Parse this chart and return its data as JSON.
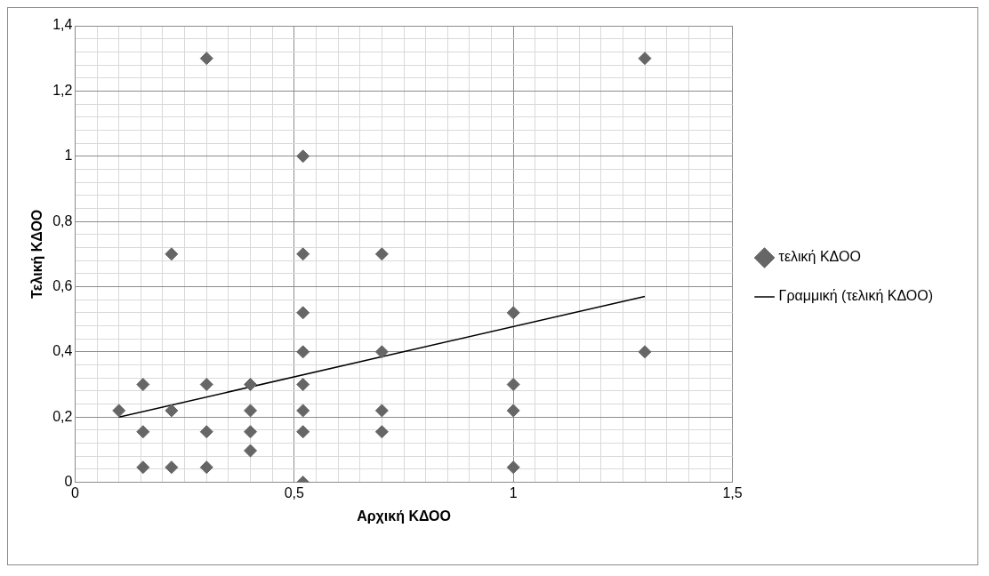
{
  "chart_data": {
    "type": "scatter",
    "xlabel": "Αρχική ΚΔΟΟ",
    "ylabel": "Τελική ΚΔΟΟ",
    "legend": "right",
    "grid": true,
    "marker": "diamond",
    "xlim": [
      0,
      1.5
    ],
    "ylim": [
      0,
      1.4
    ],
    "xticks": [
      {
        "value": 0,
        "label": "0"
      },
      {
        "value": 0.05,
        "label": null
      },
      {
        "value": 0.1,
        "label": null
      },
      {
        "value": 0.15,
        "label": null
      },
      {
        "value": 0.2,
        "label": null
      },
      {
        "value": 0.25,
        "label": null
      },
      {
        "value": 0.3,
        "label": null
      },
      {
        "value": 0.35,
        "label": null
      },
      {
        "value": 0.4,
        "label": null
      },
      {
        "value": 0.45,
        "label": null
      },
      {
        "value": 0.5,
        "label": "0,5"
      },
      {
        "value": 0.55,
        "label": null
      },
      {
        "value": 0.6,
        "label": null
      },
      {
        "value": 0.65,
        "label": null
      },
      {
        "value": 0.7,
        "label": null
      },
      {
        "value": 0.75,
        "label": null
      },
      {
        "value": 0.8,
        "label": null
      },
      {
        "value": 0.85,
        "label": null
      },
      {
        "value": 0.9,
        "label": null
      },
      {
        "value": 0.95,
        "label": null
      },
      {
        "value": 1,
        "label": "1"
      },
      {
        "value": 1.05,
        "label": null
      },
      {
        "value": 1.1,
        "label": null
      },
      {
        "value": 1.15,
        "label": null
      },
      {
        "value": 1.2,
        "label": null
      },
      {
        "value": 1.25,
        "label": null
      },
      {
        "value": 1.3,
        "label": null
      },
      {
        "value": 1.35,
        "label": null
      },
      {
        "value": 1.4,
        "label": null
      },
      {
        "value": 1.45,
        "label": null
      },
      {
        "value": 1.5,
        "label": "1,5"
      }
    ],
    "yticks": [
      {
        "value": 0,
        "label": "0"
      },
      {
        "value": 0.04,
        "label": null
      },
      {
        "value": 0.08,
        "label": null
      },
      {
        "value": 0.12,
        "label": null
      },
      {
        "value": 0.16,
        "label": null
      },
      {
        "value": 0.2,
        "label": "0,2"
      },
      {
        "value": 0.24,
        "label": null
      },
      {
        "value": 0.28,
        "label": null
      },
      {
        "value": 0.32,
        "label": null
      },
      {
        "value": 0.36,
        "label": null
      },
      {
        "value": 0.4,
        "label": "0,4"
      },
      {
        "value": 0.44,
        "label": null
      },
      {
        "value": 0.48,
        "label": null
      },
      {
        "value": 0.52,
        "label": null
      },
      {
        "value": 0.56,
        "label": null
      },
      {
        "value": 0.6,
        "label": "0,6"
      },
      {
        "value": 0.64,
        "label": null
      },
      {
        "value": 0.68,
        "label": null
      },
      {
        "value": 0.72,
        "label": null
      },
      {
        "value": 0.76,
        "label": null
      },
      {
        "value": 0.8,
        "label": "0,8"
      },
      {
        "value": 0.84,
        "label": null
      },
      {
        "value": 0.88,
        "label": null
      },
      {
        "value": 0.92,
        "label": null
      },
      {
        "value": 0.96,
        "label": null
      },
      {
        "value": 1,
        "label": "1"
      },
      {
        "value": 1.04,
        "label": null
      },
      {
        "value": 1.08,
        "label": null
      },
      {
        "value": 1.12,
        "label": null
      },
      {
        "value": 1.16,
        "label": null
      },
      {
        "value": 1.2,
        "label": "1,2"
      },
      {
        "value": 1.24,
        "label": null
      },
      {
        "value": 1.28,
        "label": null
      },
      {
        "value": 1.32,
        "label": null
      },
      {
        "value": 1.36,
        "label": null
      },
      {
        "value": 1.4,
        "label": "1,4"
      }
    ],
    "series": [
      {
        "name": "τελική ΚΔΟΟ",
        "color": "#666666",
        "x": [
          0.1,
          0.155,
          0.155,
          0.155,
          0.22,
          0.22,
          0.22,
          0.3,
          0.3,
          0.3,
          0.3,
          0.4,
          0.4,
          0.4,
          0.4,
          0.52,
          0.52,
          0.52,
          0.52,
          0.52,
          0.52,
          0.52,
          0.52,
          0.7,
          0.7,
          0.7,
          0.7,
          1,
          1,
          1,
          1,
          1.3,
          1.3
        ],
        "values": [
          0.22,
          0.3,
          0.155,
          0.046,
          0.7,
          0.22,
          0.046,
          1.3,
          0.3,
          0.155,
          0.046,
          0.3,
          0.22,
          0.155,
          0.097,
          1,
          0.7,
          0.52,
          0.4,
          0.3,
          0.22,
          0.155,
          0,
          0.7,
          0.4,
          0.22,
          0.155,
          0.52,
          0.3,
          0.22,
          0.046,
          1.3,
          0.4
        ]
      },
      {
        "name": "Γραμμική (τελική ΚΔΟΟ)",
        "type": "line",
        "color": "#000000",
        "marker": "none",
        "x": [
          0.1,
          1.3
        ],
        "values": [
          0.2,
          0.57
        ]
      }
    ]
  }
}
